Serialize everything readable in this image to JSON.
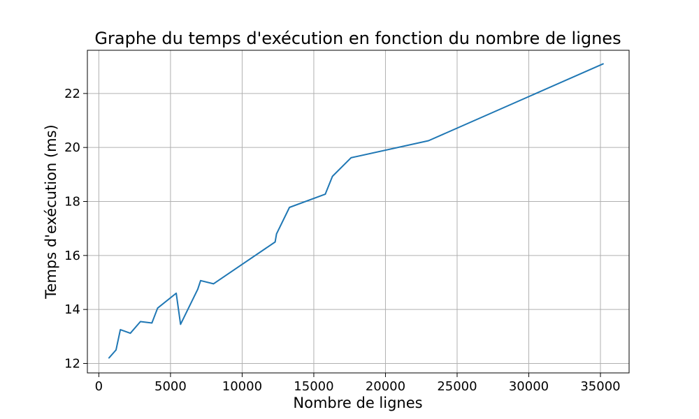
{
  "chart_data": {
    "type": "line",
    "title": "Graphe du temps d'exécution en fonction du nombre de lignes",
    "xlabel": "Nombre de lignes",
    "ylabel": "Temps d'exécution (ms)",
    "xlim": [
      -800,
      37000
    ],
    "ylim": [
      11.65,
      23.6
    ],
    "xticks": [
      0,
      5000,
      10000,
      15000,
      20000,
      25000,
      30000,
      35000
    ],
    "yticks": [
      12,
      14,
      16,
      18,
      20,
      22
    ],
    "grid": true,
    "line_color": "#1f77b4",
    "series": [
      {
        "x": [
          700,
          1200,
          1500,
          2200,
          2900,
          3700,
          4100,
          5400,
          5700,
          6900,
          7100,
          8000,
          12300,
          12400,
          13300,
          15800,
          16300,
          17600,
          23000,
          35200
        ],
        "y": [
          12.2,
          12.5,
          13.25,
          13.12,
          13.55,
          13.5,
          14.05,
          14.6,
          13.45,
          14.75,
          15.07,
          14.95,
          16.5,
          16.8,
          17.78,
          18.27,
          18.93,
          19.62,
          20.25,
          23.1
        ]
      }
    ]
  }
}
